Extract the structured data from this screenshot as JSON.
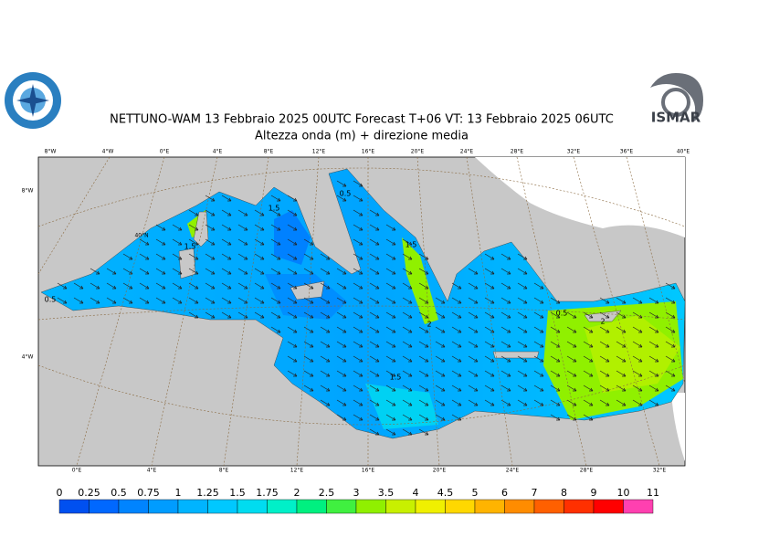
{
  "header": {
    "title": "NETTUNO-WAM  13  Febbraio 2025 00UTC Forecast T+06 VT: 13  Febbraio 2025 06UTC",
    "subtitle": "Altezza onda (m) + direzione media"
  },
  "logo": {
    "text": "ISMAR"
  },
  "map": {
    "top_labels": [
      "8°W",
      "4°W",
      "0°E",
      "4°E",
      "8°E",
      "12°E",
      "16°E",
      "20°E",
      "24°E",
      "28°E",
      "32°E",
      "36°E",
      "40°E"
    ],
    "bottom_labels": [
      "0°E",
      "4°E",
      "8°E",
      "12°E",
      "16°E",
      "20°E",
      "24°E",
      "28°E",
      "32°E"
    ],
    "left_labels": [
      "8°W",
      "40°N",
      "4°W"
    ],
    "contour_labels": [
      "0.5",
      "1.5",
      "1.5",
      "0.5",
      "1.5",
      "2",
      "1.5",
      "0.5",
      "2"
    ]
  },
  "colorbar": {
    "labels": [
      "0",
      "0.25",
      "0.5",
      "0.75",
      "1",
      "1.25",
      "1.5",
      "1.75",
      "2",
      "2.5",
      "3",
      "3.5",
      "4",
      "4.5",
      "5",
      "6",
      "7",
      "8",
      "9",
      "10",
      "11"
    ],
    "colors": [
      "#0050f0",
      "#0068ff",
      "#0084ff",
      "#009cff",
      "#00b4ff",
      "#00c8ff",
      "#00dcf0",
      "#00f0c8",
      "#00f080",
      "#40f040",
      "#90f000",
      "#c8f000",
      "#f0f000",
      "#ffd800",
      "#ffb400",
      "#ff8c00",
      "#ff6000",
      "#ff3000",
      "#ff0000",
      "#ff40b0"
    ]
  }
}
